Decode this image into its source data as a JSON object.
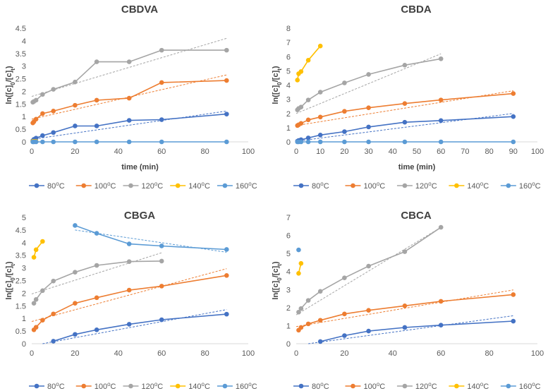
{
  "colors": {
    "80C": "#4472c4",
    "100C": "#ed7d31",
    "120C": "#a5a5a5",
    "140C": "#ffc000",
    "160C": "#5b9bd5"
  },
  "chart_data": [
    {
      "type": "scatter",
      "title": "CBDVA",
      "xlabel": "time (min)",
      "ylabel_main": "ln([c]",
      "ylabel_sub1": "0",
      "ylabel_mid": "/[c]",
      "ylabel_sub2": "t",
      "ylabel_end": ")",
      "xlim": [
        0,
        100
      ],
      "ylim": [
        0,
        4.5
      ],
      "xticks": [
        "0",
        "20",
        "40",
        "60",
        "80",
        "100"
      ],
      "yticks": [
        "0",
        "0.5",
        "1",
        "1.5",
        "2",
        "2.5",
        "3",
        "3.5",
        "4",
        "4.5"
      ],
      "series": [
        {
          "name": "80",
          "key": "80C",
          "x": [
            0.5,
            1,
            2,
            5,
            10,
            20,
            30,
            45,
            60,
            90
          ],
          "y": [
            0.05,
            0.1,
            0.15,
            0.25,
            0.37,
            0.63,
            0.63,
            0.85,
            0.88,
            1.1
          ],
          "trend": [
            [
              0,
              0.1
            ],
            [
              90,
              1.22
            ]
          ]
        },
        {
          "name": "100",
          "key": "100C",
          "x": [
            0.5,
            1,
            2,
            5,
            10,
            20,
            30,
            45,
            60,
            90
          ],
          "y": [
            0.75,
            0.8,
            0.9,
            1.12,
            1.22,
            1.45,
            1.65,
            1.73,
            2.35,
            2.43
          ],
          "trend": [
            [
              0,
              0.9
            ],
            [
              90,
              2.65
            ]
          ]
        },
        {
          "name": "120",
          "key": "120C",
          "x": [
            0.5,
            1,
            2,
            5,
            10,
            20,
            30,
            45,
            60,
            90
          ],
          "y": [
            1.57,
            1.6,
            1.65,
            1.88,
            2.08,
            2.37,
            3.17,
            3.17,
            3.63,
            3.63
          ],
          "trend": [
            [
              0,
              1.8
            ],
            [
              90,
              4.1
            ]
          ]
        },
        {
          "name": "140",
          "key": "140C",
          "x": [
            0.5,
            1,
            2
          ],
          "y": [
            0.02,
            0.02,
            0.02
          ],
          "trend": null
        },
        {
          "name": "160",
          "key": "160C",
          "x": [
            0.5,
            1,
            2,
            5,
            10,
            20,
            30,
            45,
            60,
            90
          ],
          "y": [
            0,
            0,
            0,
            0,
            0,
            0,
            0,
            0,
            0,
            0
          ],
          "trend": null
        }
      ]
    },
    {
      "type": "scatter",
      "title": "CBDA",
      "xlabel": "time (min)",
      "ylabel_main": "ln([c]",
      "ylabel_sub1": "0",
      "ylabel_mid": "/[c]",
      "ylabel_sub2": "t",
      "ylabel_end": ")",
      "xlim": [
        0,
        100
      ],
      "ylim": [
        0,
        8
      ],
      "xticks": [
        "0",
        "10",
        "20",
        "30",
        "40",
        "50",
        "60",
        "70",
        "80",
        "90",
        "100"
      ],
      "yticks": [
        "0",
        "1",
        "2",
        "3",
        "4",
        "5",
        "6",
        "7",
        "8"
      ],
      "series": [
        {
          "name": "80",
          "key": "80C",
          "x": [
            0.5,
            1,
            2,
            5,
            10,
            20,
            30,
            45,
            60,
            90
          ],
          "y": [
            0.05,
            0.1,
            0.15,
            0.28,
            0.48,
            0.72,
            1.05,
            1.38,
            1.5,
            1.78
          ],
          "trend": [
            [
              0,
              0.05
            ],
            [
              90,
              2.0
            ]
          ]
        },
        {
          "name": "100",
          "key": "100C",
          "x": [
            0.5,
            1,
            2,
            5,
            10,
            20,
            30,
            45,
            60,
            90
          ],
          "y": [
            1.15,
            1.2,
            1.3,
            1.55,
            1.75,
            2.15,
            2.4,
            2.7,
            2.95,
            3.4
          ],
          "trend": [
            [
              0,
              1.15
            ],
            [
              90,
              3.6
            ]
          ]
        },
        {
          "name": "120",
          "key": "120C",
          "x": [
            0.5,
            1,
            2,
            5,
            10,
            20,
            30,
            45,
            60
          ],
          "y": [
            2.25,
            2.35,
            2.45,
            2.95,
            3.5,
            4.15,
            4.75,
            5.4,
            5.85
          ],
          "trend": [
            [
              0,
              2.0
            ],
            [
              60,
              6.2
            ]
          ]
        },
        {
          "name": "140",
          "key": "140C",
          "x": [
            0.5,
            1,
            2,
            5,
            10
          ],
          "y": [
            4.35,
            4.8,
            4.95,
            5.75,
            6.75
          ],
          "trend": null
        },
        {
          "name": "160",
          "key": "160C",
          "x": [
            0.5,
            1,
            2,
            5,
            10,
            20,
            30,
            45,
            60,
            90
          ],
          "y": [
            0,
            0,
            0,
            0,
            0,
            0,
            0,
            0,
            0,
            0
          ],
          "trend": null
        }
      ]
    },
    {
      "type": "scatter",
      "title": "CBGA",
      "xlabel": "",
      "ylabel_main": "ln([c]",
      "ylabel_sub1": "0",
      "ylabel_mid": "/[c]",
      "ylabel_sub2": "t",
      "ylabel_end": ")",
      "xlim": [
        0,
        100
      ],
      "ylim": [
        0,
        5
      ],
      "xticks": [
        "0",
        "20",
        "40",
        "60",
        "80",
        "100"
      ],
      "yticks": [
        "0",
        "0.5",
        "1",
        "1.5",
        "2",
        "2.5",
        "3",
        "3.5",
        "4",
        "4.5",
        "5"
      ],
      "series": [
        {
          "name": "80",
          "key": "80C",
          "x": [
            10,
            20,
            30,
            45,
            60,
            90
          ],
          "y": [
            0.1,
            0.37,
            0.55,
            0.77,
            0.95,
            1.17
          ],
          "trend": [
            [
              5,
              0.0
            ],
            [
              90,
              1.35
            ]
          ]
        },
        {
          "name": "100",
          "key": "100C",
          "x": [
            1,
            2,
            5,
            10,
            20,
            30,
            45,
            60,
            90
          ],
          "y": [
            0.55,
            0.65,
            0.93,
            1.18,
            1.6,
            1.82,
            2.12,
            2.28,
            2.7
          ],
          "trend": [
            [
              0,
              0.88
            ],
            [
              90,
              2.97
            ]
          ]
        },
        {
          "name": "120",
          "key": "120C",
          "x": [
            1,
            2,
            5,
            10,
            20,
            30,
            45,
            60
          ],
          "y": [
            1.6,
            1.75,
            2.1,
            2.48,
            2.83,
            3.1,
            3.25,
            3.27
          ],
          "trend": [
            [
              0,
              1.97
            ],
            [
              60,
              3.6
            ]
          ]
        },
        {
          "name": "140",
          "key": "140C",
          "x": [
            1,
            2,
            5
          ],
          "y": [
            3.42,
            3.72,
            4.05
          ],
          "trend": null
        },
        {
          "name": "160",
          "key": "160C",
          "x": [
            20,
            30,
            45,
            60,
            90
          ],
          "y": [
            4.68,
            4.37,
            3.95,
            3.87,
            3.73
          ],
          "trend": [
            [
              20,
              4.5
            ],
            [
              90,
              3.62
            ]
          ]
        }
      ]
    },
    {
      "type": "scatter",
      "title": "CBCA",
      "xlabel": "",
      "ylabel_main": "ln([c]",
      "ylabel_sub1": "0",
      "ylabel_mid": "/[c]",
      "ylabel_sub2": "t",
      "ylabel_end": ")",
      "xlim": [
        0,
        100
      ],
      "ylim": [
        0,
        7
      ],
      "xticks": [
        "0",
        "20",
        "40",
        "60",
        "80",
        "100"
      ],
      "yticks": [
        "0",
        "1",
        "2",
        "3",
        "4",
        "5",
        "6",
        "7"
      ],
      "series": [
        {
          "name": "80",
          "key": "80C",
          "x": [
            10,
            20,
            30,
            45,
            60,
            90
          ],
          "y": [
            0.12,
            0.45,
            0.7,
            0.9,
            1.03,
            1.25
          ],
          "trend": [
            [
              5,
              0.0
            ],
            [
              90,
              1.55
            ]
          ]
        },
        {
          "name": "100",
          "key": "100C",
          "x": [
            1,
            2,
            5,
            10,
            20,
            30,
            45,
            60,
            90
          ],
          "y": [
            0.75,
            0.9,
            1.1,
            1.3,
            1.65,
            1.85,
            2.1,
            2.35,
            2.72
          ],
          "trend": [
            [
              0,
              0.95
            ],
            [
              90,
              2.98
            ]
          ]
        },
        {
          "name": "120",
          "key": "120C",
          "x": [
            1,
            2,
            5,
            10,
            20,
            30,
            45,
            60
          ],
          "y": [
            1.75,
            1.95,
            2.4,
            2.9,
            3.65,
            4.3,
            5.1,
            6.45
          ],
          "trend": [
            [
              0,
              1.6
            ],
            [
              60,
              6.45
            ]
          ]
        },
        {
          "name": "140",
          "key": "140C",
          "x": [
            1,
            2
          ],
          "y": [
            3.9,
            4.45
          ],
          "trend": null
        },
        {
          "name": "160",
          "key": "160C",
          "x": [
            1
          ],
          "y": [
            5.2
          ],
          "trend": null
        }
      ]
    }
  ],
  "legend": [
    {
      "key": "80C",
      "value": "80",
      "unit_sup": "o",
      "unit": "C"
    },
    {
      "key": "100C",
      "value": "100",
      "unit_sup": "o",
      "unit": "C"
    },
    {
      "key": "120C",
      "value": "120",
      "unit_sup": "o",
      "unit": "C"
    },
    {
      "key": "140C",
      "value": "140",
      "unit_sup": "o",
      "unit": "C"
    },
    {
      "key": "160C",
      "value": "160",
      "unit_sup": "o",
      "unit": "C"
    }
  ]
}
